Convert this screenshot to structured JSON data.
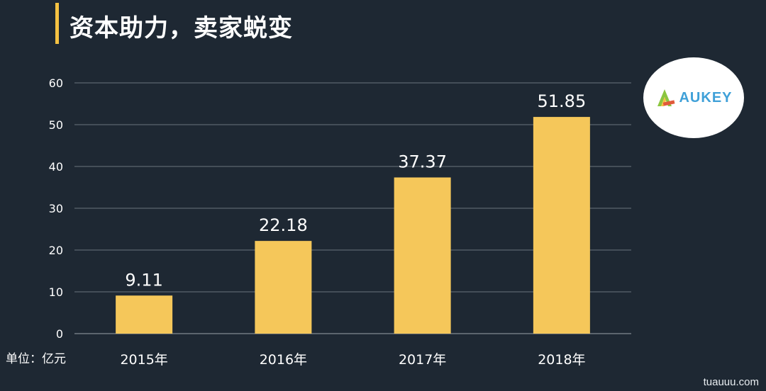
{
  "title": "资本助力，卖家蜕变",
  "unit_label": "单位：亿元",
  "logo": {
    "text": "AUKEY"
  },
  "watermark": "tuauuu.com",
  "colors": {
    "background": "#1e2833",
    "bar": "#f5c75a",
    "accent": "#f5c242",
    "grid": "#6b747d",
    "text": "#ffffff",
    "logo_green": "#8cc63f",
    "logo_blue": "#3fa0d8"
  },
  "chart_data": {
    "type": "bar",
    "categories": [
      "2015年",
      "2016年",
      "2017年",
      "2018年"
    ],
    "values": [
      9.11,
      22.18,
      37.37,
      51.85
    ],
    "data_labels": [
      "9.11",
      "22.18",
      "37.37",
      "51.85"
    ],
    "yticks": [
      0,
      10,
      20,
      30,
      40,
      50,
      60
    ],
    "ylim": [
      0,
      60
    ],
    "grid": true,
    "legend": "none"
  }
}
